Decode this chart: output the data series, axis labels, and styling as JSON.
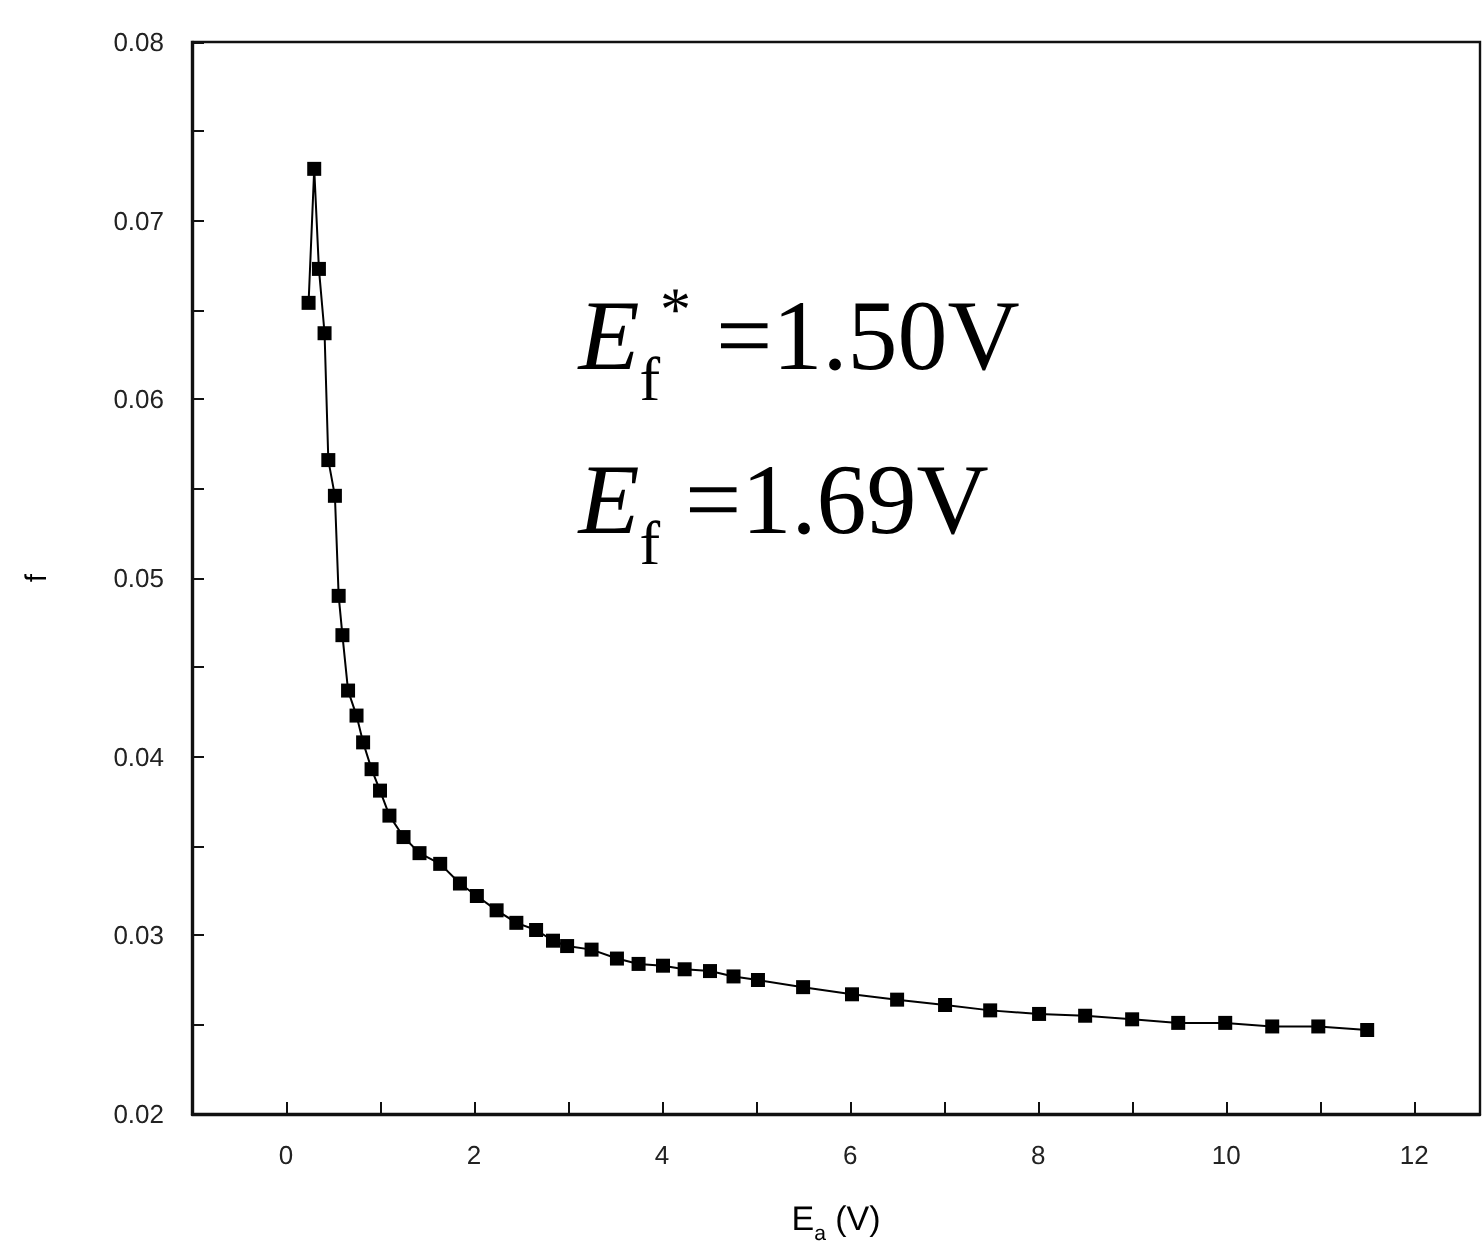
{
  "chart_data": {
    "type": "line",
    "xlabel": "E$_{a}$ (V)",
    "ylabel": "f",
    "annotations": [
      "E$_{f}$$^{*}$ =1.50V",
      "E$_{f}$ =1.69V"
    ],
    "series": [
      {
        "color": "#000000",
        "x": [
          0.24,
          0.3,
          0.35,
          0.41,
          0.45,
          0.52,
          0.56,
          0.6,
          0.66,
          0.75,
          0.82,
          0.91,
          1.0,
          1.1,
          1.25,
          1.42,
          1.64,
          1.85,
          2.03,
          2.24,
          2.45,
          2.66,
          2.84,
          2.99,
          3.25,
          3.52,
          3.75,
          4.01,
          4.24,
          4.51,
          4.76,
          5.02,
          5.5,
          6.02,
          6.5,
          7.01,
          7.49,
          8.01,
          8.5,
          9.0,
          9.49,
          9.99,
          10.49,
          10.98,
          11.5
        ],
        "values": [
          0.0654,
          0.0729,
          0.0673,
          0.0637,
          0.0566,
          0.0546,
          0.049,
          0.0468,
          0.0437,
          0.0423,
          0.0408,
          0.0393,
          0.0381,
          0.0367,
          0.0355,
          0.0346,
          0.034,
          0.0329,
          0.0322,
          0.0314,
          0.0307,
          0.0303,
          0.0297,
          0.0294,
          0.0292,
          0.0287,
          0.0284,
          0.0283,
          0.0281,
          0.028,
          0.0277,
          0.0275,
          0.0271,
          0.0267,
          0.0264,
          0.0261,
          0.0258,
          0.0256,
          0.0255,
          0.0253,
          0.0251,
          0.0251,
          0.0249,
          0.0249,
          0.0247
        ]
      }
    ],
    "xlim": [
      -1,
      12.7
    ],
    "xticks": [
      0,
      {
        "value": 1,
        "label": null
      },
      2,
      {
        "value": 3,
        "label": null
      },
      4,
      {
        "value": 5,
        "label": null
      },
      6,
      {
        "value": 7,
        "label": null
      },
      8,
      {
        "value": 9,
        "label": null
      },
      10,
      {
        "value": 11,
        "label": null
      },
      12
    ],
    "ylim": [
      0.02,
      0.08
    ],
    "yticks": [
      0.02,
      {
        "value": 0.025,
        "label": null
      },
      0.03,
      {
        "value": 0.035,
        "label": null
      },
      0.04,
      {
        "value": 0.045,
        "label": null
      },
      0.05,
      {
        "value": 0.055,
        "label": null
      },
      0.06,
      {
        "value": 0.065,
        "label": null
      },
      0.07,
      {
        "value": 0.075,
        "label": null
      },
      0.08
    ],
    "marker": "square",
    "line_style": "solid"
  }
}
